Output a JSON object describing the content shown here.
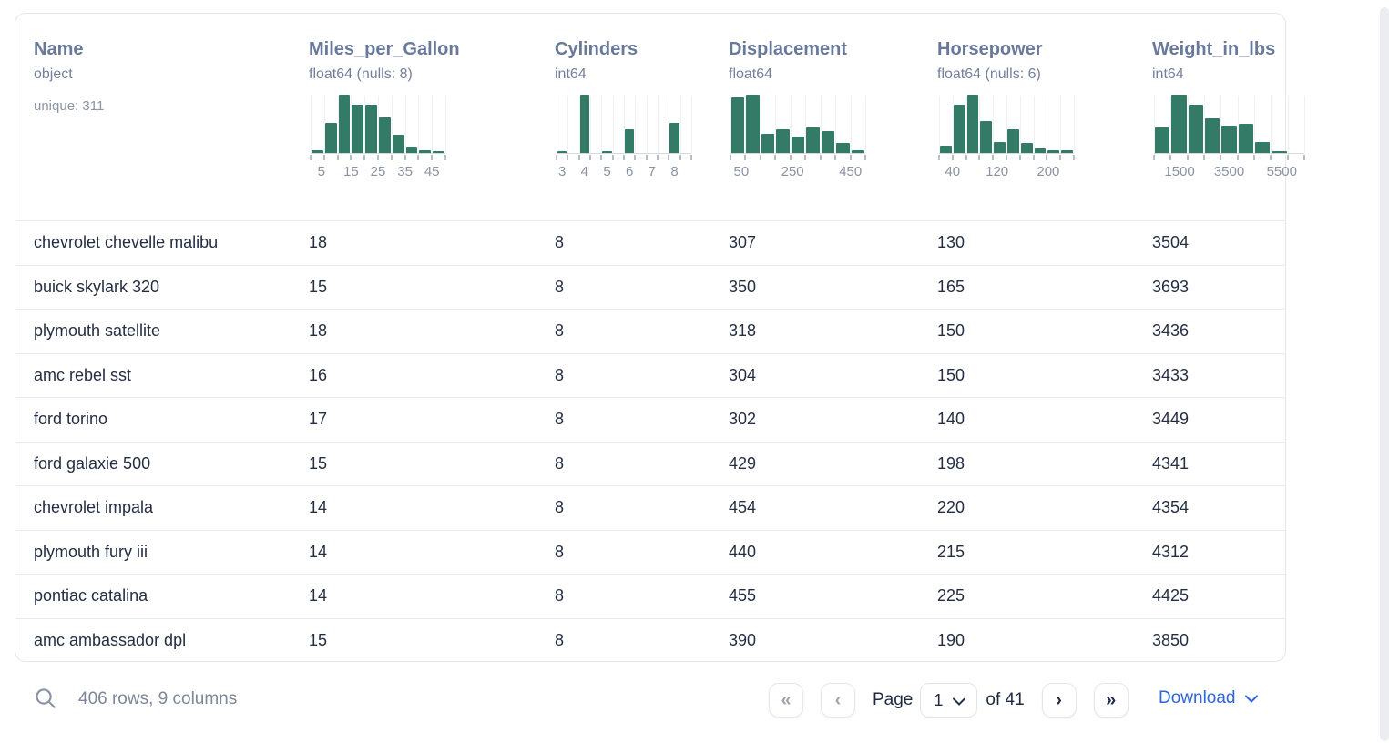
{
  "table": {
    "columns": [
      {
        "name": "Name",
        "type": "object",
        "extra": "unique: 311"
      },
      {
        "name": "Miles_per_Gallon",
        "type": "float64 (nulls: 8)",
        "histogram": {
          "type": "bar",
          "width": 148,
          "bar_heights_pct": [
            4,
            52,
            100,
            83,
            83,
            61,
            31,
            11,
            4,
            2
          ],
          "axis_labels": [
            {
              "text": "5",
              "pos": 0.08
            },
            {
              "text": "15",
              "pos": 0.3
            },
            {
              "text": "25",
              "pos": 0.5
            },
            {
              "text": "35",
              "pos": 0.7
            },
            {
              "text": "45",
              "pos": 0.9
            }
          ]
        }
      },
      {
        "name": "Cylinders",
        "type": "int64",
        "histogram": {
          "type": "bar",
          "width": 148,
          "bar_heights_pct": [
            3,
            0,
            100,
            0,
            2,
            0,
            40,
            0,
            0,
            0,
            52,
            0
          ],
          "axis_labels": [
            {
              "text": "3",
              "pos": 0.042
            },
            {
              "text": "4",
              "pos": 0.208
            },
            {
              "text": "5",
              "pos": 0.375
            },
            {
              "text": "6",
              "pos": 0.542
            },
            {
              "text": "7",
              "pos": 0.708
            },
            {
              "text": "8",
              "pos": 0.875
            }
          ]
        }
      },
      {
        "name": "Displacement",
        "type": "float64",
        "histogram": {
          "type": "bar",
          "width": 148,
          "bar_heights_pct": [
            95,
            100,
            33,
            40,
            28,
            43,
            38,
            17,
            4
          ],
          "axis_labels": [
            {
              "text": "50",
              "pos": 0.08
            },
            {
              "text": "250",
              "pos": 0.46
            },
            {
              "text": "450",
              "pos": 0.89
            }
          ]
        }
      },
      {
        "name": "Horsepower",
        "type": "float64 (nulls: 6)",
        "histogram": {
          "type": "bar",
          "width": 148,
          "bar_heights_pct": [
            13,
            83,
            100,
            55,
            18,
            40,
            17,
            8,
            5,
            4
          ],
          "axis_labels": [
            {
              "text": "40",
              "pos": 0.1
            },
            {
              "text": "120",
              "pos": 0.43
            },
            {
              "text": "200",
              "pos": 0.81
            }
          ]
        }
      },
      {
        "name": "Weight_in_lbs",
        "type": "int64",
        "histogram": {
          "type": "bar",
          "width": 165,
          "bar_heights_pct": [
            43,
            100,
            83,
            60,
            47,
            50,
            18,
            2,
            0
          ],
          "axis_labels": [
            {
              "text": "1500",
              "pos": 0.17
            },
            {
              "text": "3500",
              "pos": 0.5
            },
            {
              "text": "5500",
              "pos": 0.85
            }
          ]
        }
      }
    ],
    "rows": [
      [
        "chevrolet chevelle malibu",
        "18",
        "8",
        "307",
        "130",
        "3504"
      ],
      [
        "buick skylark 320",
        "15",
        "8",
        "350",
        "165",
        "3693"
      ],
      [
        "plymouth satellite",
        "18",
        "8",
        "318",
        "150",
        "3436"
      ],
      [
        "amc rebel sst",
        "16",
        "8",
        "304",
        "150",
        "3433"
      ],
      [
        "ford torino",
        "17",
        "8",
        "302",
        "140",
        "3449"
      ],
      [
        "ford galaxie 500",
        "15",
        "8",
        "429",
        "198",
        "4341"
      ],
      [
        "chevrolet impala",
        "14",
        "8",
        "454",
        "220",
        "4354"
      ],
      [
        "plymouth fury iii",
        "14",
        "8",
        "440",
        "215",
        "4312"
      ],
      [
        "pontiac catalina",
        "14",
        "8",
        "455",
        "225",
        "4425"
      ],
      [
        "amc ambassador dpl",
        "15",
        "8",
        "390",
        "190",
        "3850"
      ]
    ]
  },
  "footer": {
    "summary": "406 rows, 9 columns",
    "page_label": "Page",
    "page_value": "1",
    "of_label": "of 41",
    "download_label": "Download"
  },
  "icons": {
    "first_page": "«",
    "prev_page": "‹",
    "next_page": "›",
    "last_page": "»"
  },
  "colors": {
    "histogram_bar": "#337b67",
    "accent_blue": "#2b66dd",
    "header_text": "#69799a",
    "row_text": "#242e42"
  }
}
